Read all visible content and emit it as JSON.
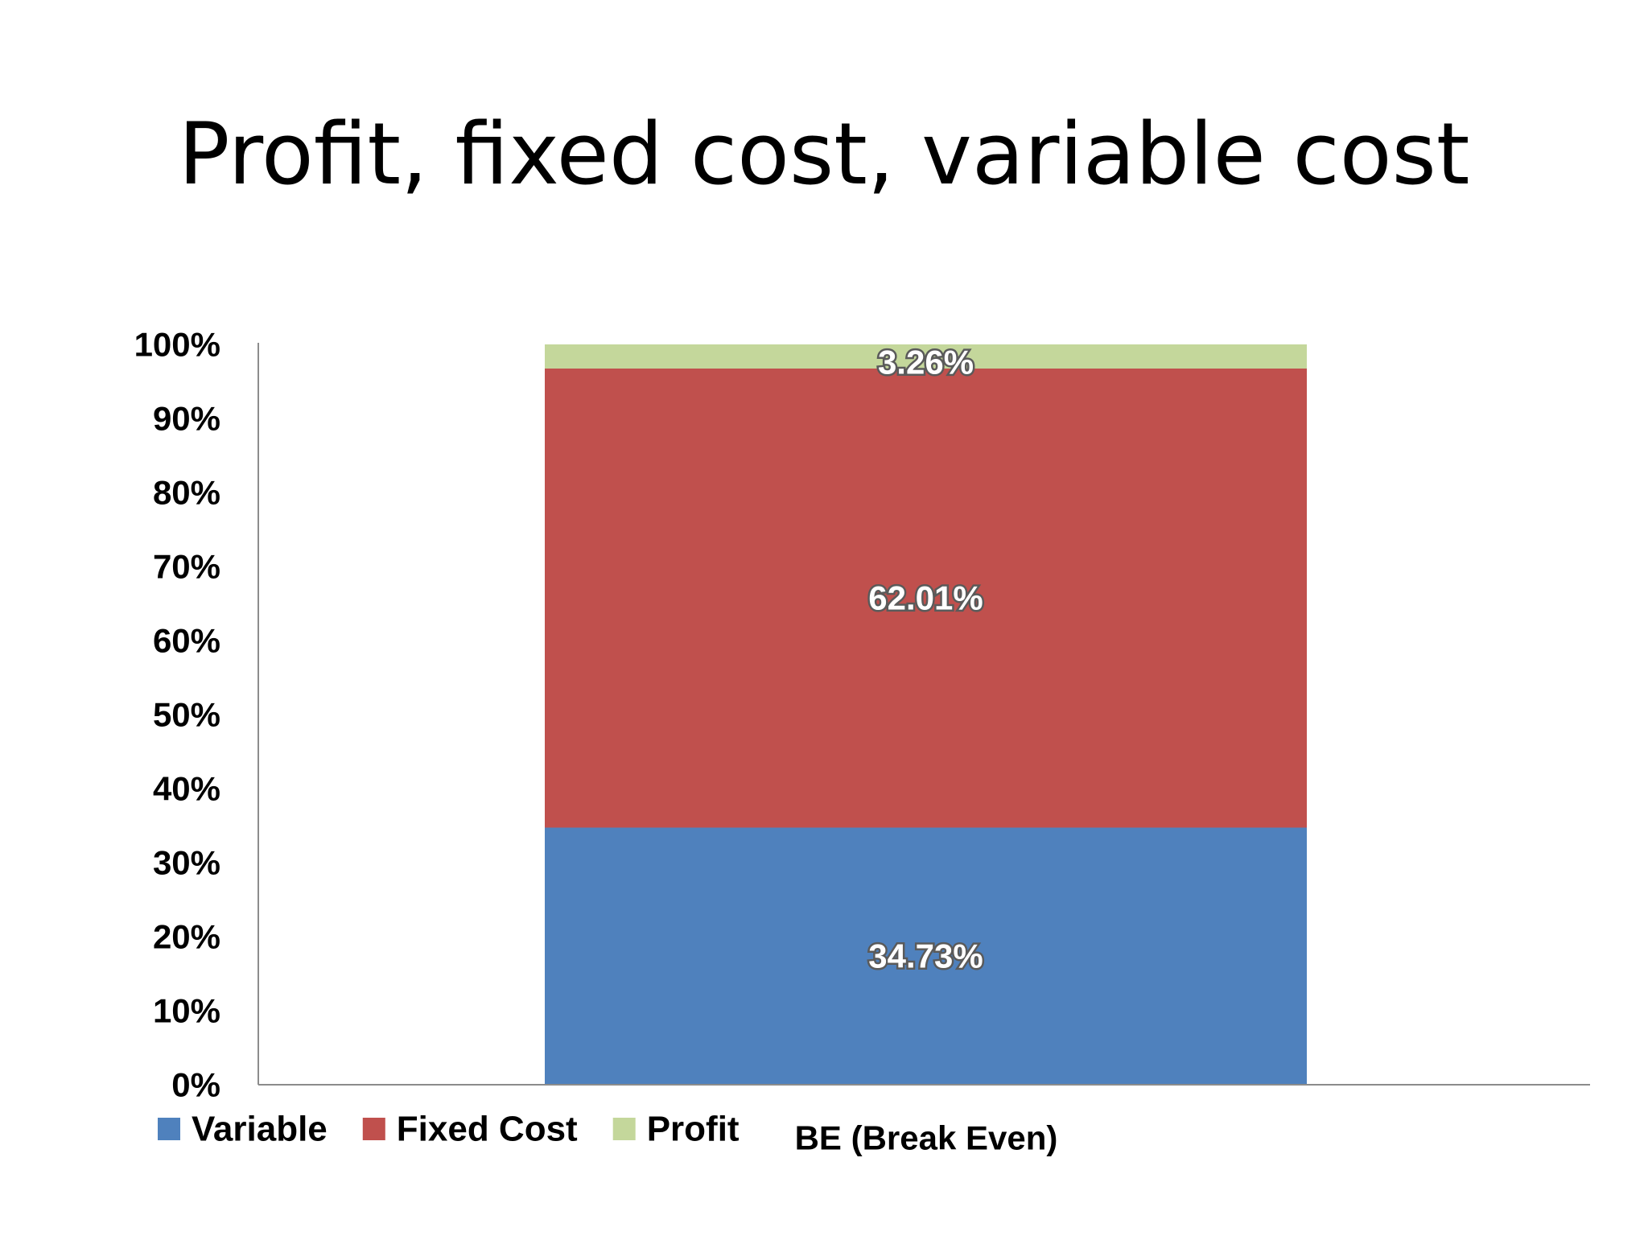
{
  "slide": {
    "title": "Profit, fixed cost, variable cost"
  },
  "chart_data": {
    "type": "bar",
    "stacked": "100%",
    "categories": [
      "BE (Break Even)"
    ],
    "series": [
      {
        "name": "Variable",
        "values": [
          34.73
        ],
        "label": "34.73%",
        "color": "#4F81BD"
      },
      {
        "name": "Fixed Cost",
        "values": [
          62.01
        ],
        "label": "62.01%",
        "color": "#C0504D"
      },
      {
        "name": "Profit",
        "values": [
          3.26
        ],
        "label": "3.26%",
        "color": "#C4D79B"
      }
    ],
    "title": "",
    "xlabel": "",
    "ylabel": "",
    "ylim": [
      0,
      100
    ],
    "yticks": [
      "0%",
      "10%",
      "20%",
      "30%",
      "40%",
      "50%",
      "60%",
      "70%",
      "80%",
      "90%",
      "100%"
    ],
    "grid": false,
    "legend_position": "bottom-left"
  }
}
